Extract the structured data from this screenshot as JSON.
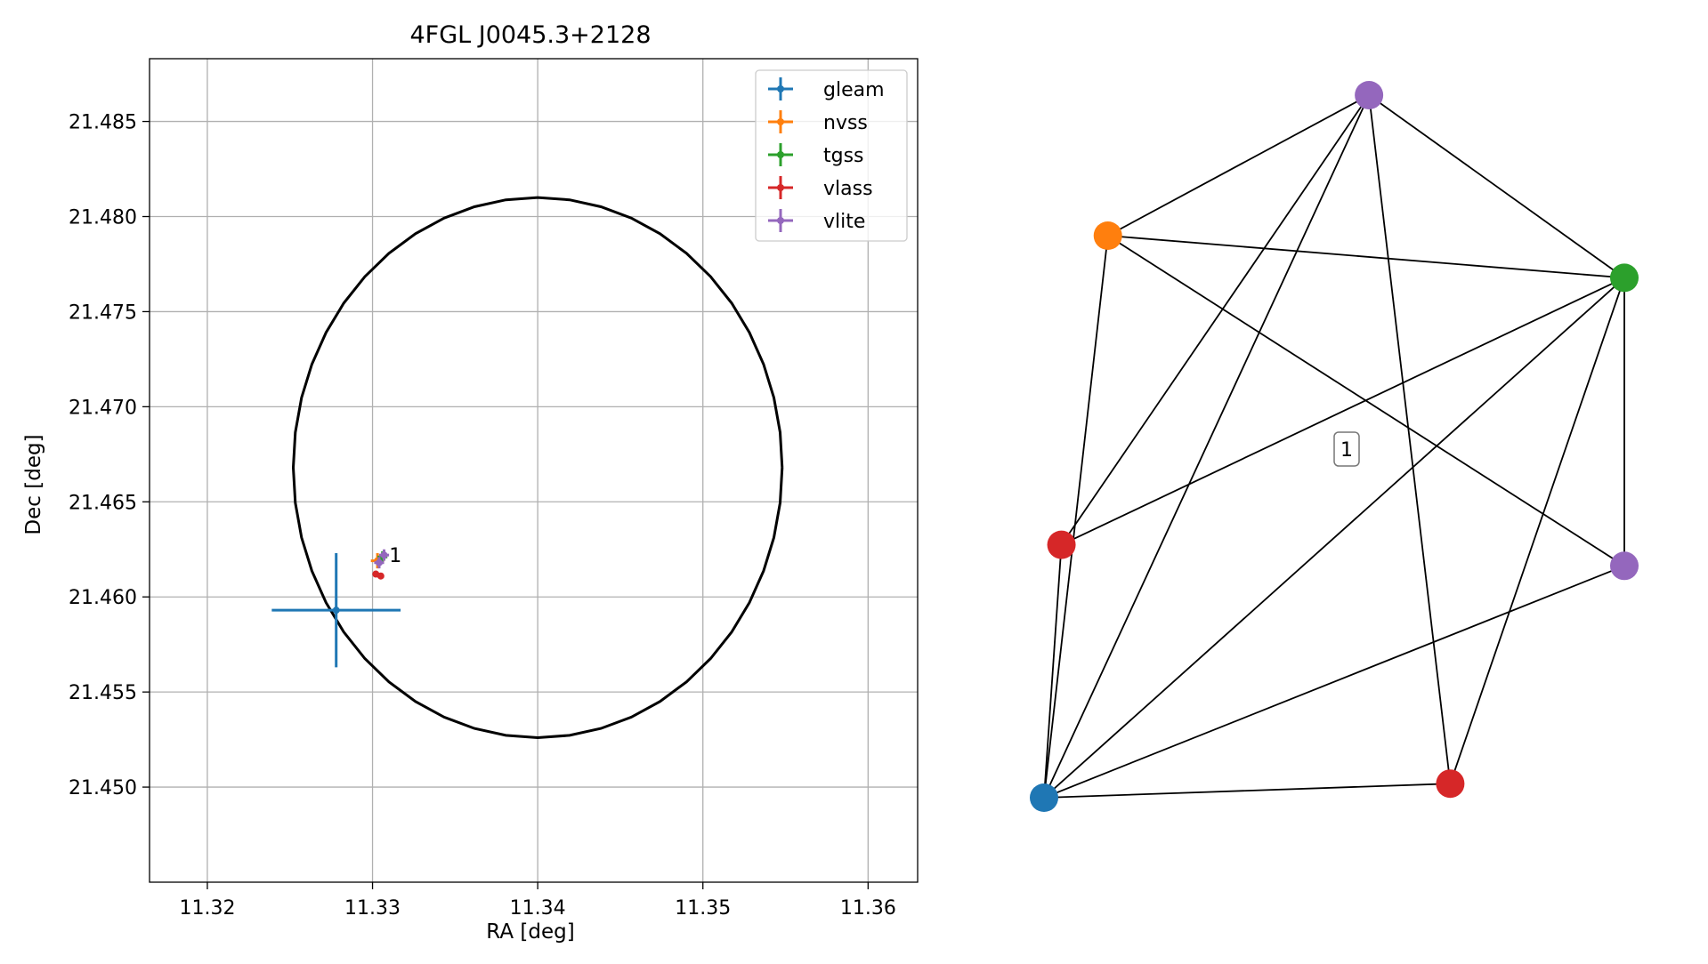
{
  "chart_data": [
    {
      "type": "scatter",
      "title": "4FGL J0045.3+2128",
      "xlabel": "RA [deg]",
      "ylabel": "Dec [deg]",
      "xlim": [
        11.3165,
        11.363
      ],
      "ylim": [
        21.445,
        21.4883
      ],
      "xticks": [
        "11.32",
        "11.33",
        "11.34",
        "11.35",
        "11.36"
      ],
      "yticks": [
        "21.450",
        "21.455",
        "21.460",
        "21.465",
        "21.470",
        "21.475",
        "21.480",
        "21.485"
      ],
      "grid": true,
      "legend": "top-right",
      "ellipse": {
        "center": [
          11.34,
          21.4668
        ],
        "ra_radius": 0.0148,
        "dec_radius": 0.0142,
        "color": "#000000"
      },
      "series": [
        {
          "name": "gleam",
          "color": "#1f77b4",
          "points": [
            {
              "x": 11.3278,
              "y": 21.4593,
              "xerr": 0.0039,
              "yerr": 0.003
            }
          ]
        },
        {
          "name": "nvss",
          "color": "#ff7f0e",
          "points": [
            {
              "x": 11.3303,
              "y": 21.4619,
              "xerr": 0.0004,
              "yerr": 0.0004
            }
          ]
        },
        {
          "name": "tgss",
          "color": "#2ca02c",
          "points": [
            {
              "x": 11.3306,
              "y": 21.4621,
              "xerr": 0.0003,
              "yerr": 0.0003
            }
          ]
        },
        {
          "name": "vlass",
          "color": "#d62728",
          "points": [
            {
              "x": 11.3302,
              "y": 21.4612,
              "xerr": 0.0001,
              "yerr": 0.0001
            },
            {
              "x": 11.3305,
              "y": 21.4611,
              "xerr": 0.0001,
              "yerr": 0.0001
            }
          ]
        },
        {
          "name": "vlite",
          "color": "#9467bd",
          "points": [
            {
              "x": 11.3304,
              "y": 21.4618,
              "xerr": 0.0003,
              "yerr": 0.0003
            },
            {
              "x": 11.3307,
              "y": 21.4622,
              "xerr": 0.0003,
              "yerr": 0.0003
            }
          ]
        }
      ],
      "annotations": [
        {
          "text": "1",
          "x": 11.3309,
          "y": 21.4622
        }
      ]
    },
    {
      "type": "network",
      "nodes": [
        {
          "id": "gleam",
          "color": "#1f77b4",
          "x": 0.0,
          "y": 0.0
        },
        {
          "id": "nvss",
          "color": "#ff7f0e",
          "x": 0.11,
          "y": 0.8
        },
        {
          "id": "tgss",
          "color": "#2ca02c",
          "x": 1.0,
          "y": 0.74
        },
        {
          "id": "vlass_a",
          "color": "#d62728",
          "x": 0.03,
          "y": 0.36
        },
        {
          "id": "vlass_b",
          "color": "#d62728",
          "x": 0.7,
          "y": 0.02
        },
        {
          "id": "vlite_a",
          "color": "#9467bd",
          "x": 0.56,
          "y": 1.0
        },
        {
          "id": "vlite_b",
          "color": "#9467bd",
          "x": 1.0,
          "y": 0.33
        }
      ],
      "edges": [
        [
          "gleam",
          "nvss"
        ],
        [
          "gleam",
          "vlite_a"
        ],
        [
          "gleam",
          "tgss"
        ],
        [
          "gleam",
          "vlass_a"
        ],
        [
          "gleam",
          "vlite_b"
        ],
        [
          "gleam",
          "vlass_b"
        ],
        [
          "nvss",
          "vlite_a"
        ],
        [
          "nvss",
          "tgss"
        ],
        [
          "nvss",
          "vlite_b"
        ],
        [
          "vlite_a",
          "tgss"
        ],
        [
          "vlite_a",
          "vlass_a"
        ],
        [
          "vlite_a",
          "vlass_b"
        ],
        [
          "tgss",
          "vlass_a"
        ],
        [
          "tgss",
          "vlite_b"
        ],
        [
          "tgss",
          "vlass_b"
        ]
      ],
      "label": {
        "text": "1"
      }
    }
  ]
}
